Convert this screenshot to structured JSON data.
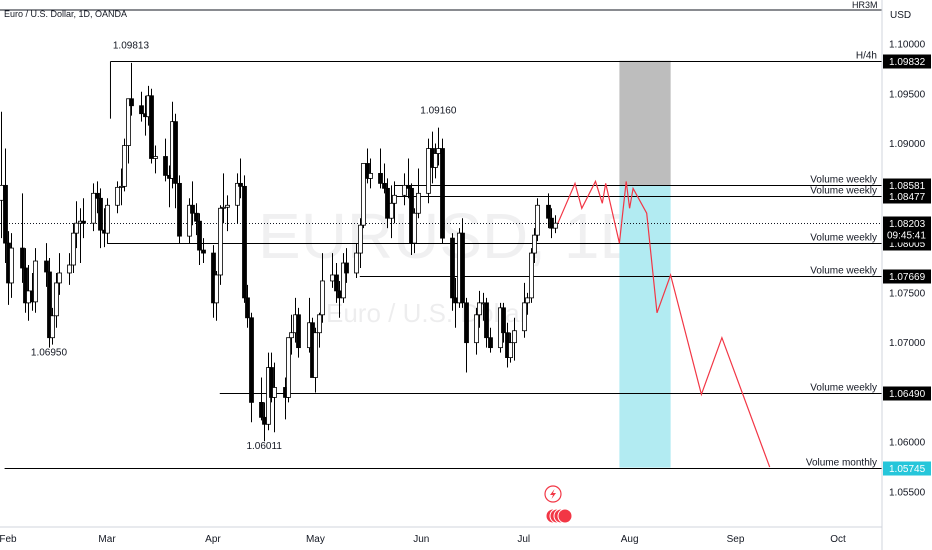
{
  "header": {
    "symbol_title": "Euro / U.S. Dollar, 1D, OANDA",
    "currency": "USD",
    "corner_tag": "HR3M"
  },
  "watermark": {
    "ticker": "EURUSD, 1D",
    "name": "Euro / U.S. Dollar"
  },
  "colors": {
    "up": "#ffffff",
    "down": "#000000",
    "projection": "#f23645",
    "stop_zone": "#bdbdbd",
    "target_zone": "#b2ebf2",
    "line": "#000000"
  },
  "chart_data": {
    "type": "candlestick",
    "x_ticks": [
      "Feb",
      "Mar",
      "Apr",
      "May",
      "Jun",
      "Jul",
      "Aug",
      "Sep",
      "Oct"
    ],
    "y_ticks": [
      "1.10000",
      "1.09500",
      "1.09000",
      "1.07500",
      "1.07000",
      "1.06000",
      "1.05500"
    ],
    "y_range": [
      1.0526,
      1.1017
    ],
    "current_price": "1.08203",
    "countdown": "09:45:41",
    "annotations": [
      {
        "label": "1.09813",
        "price": 1.09813
      },
      {
        "label": "1.09160",
        "price": 1.0916
      },
      {
        "label": "1.06950",
        "price": 1.0695
      },
      {
        "label": "1.06011",
        "price": 1.06011
      }
    ],
    "levels": [
      {
        "label": "H/4h",
        "value": "1.09832",
        "price": 1.09832
      },
      {
        "label": "Volume weekly",
        "value": "1.08581",
        "price": 1.08581
      },
      {
        "label": "Volume weekly",
        "value": "1.08477",
        "price": 1.08477
      },
      {
        "label": "Volume weekly",
        "value": "1.08005",
        "price": 1.08005
      },
      {
        "label": "Volume weekly",
        "value": "1.07669",
        "price": 1.07669
      },
      {
        "label": "Volume weekly",
        "value": "1.06490",
        "price": 1.0649
      },
      {
        "label": "Volume monthly",
        "value": "1.05745",
        "price": 1.05745
      }
    ],
    "candles": [
      {
        "date": "Jan 30",
        "o": 1.0843,
        "h": 1.0932,
        "l": 1.0805,
        "c": 1.0858
      },
      {
        "date": "Jan 31",
        "o": 1.0858,
        "h": 1.0895,
        "l": 1.078,
        "c": 1.08
      },
      {
        "date": "Feb 1",
        "o": 1.08,
        "h": 1.0812,
        "l": 1.0738,
        "c": 1.076
      },
      {
        "date": "Feb 2",
        "o": 1.076,
        "h": 1.081,
        "l": 1.0745,
        "c": 1.0795
      },
      {
        "date": "Feb 5",
        "o": 1.0795,
        "h": 1.085,
        "l": 1.076,
        "c": 1.0775
      },
      {
        "date": "Feb 6",
        "o": 1.0775,
        "h": 1.0795,
        "l": 1.073,
        "c": 1.074
      },
      {
        "date": "Feb 7",
        "o": 1.074,
        "h": 1.0778,
        "l": 1.0722,
        "c": 1.0752
      },
      {
        "date": "Feb 8",
        "o": 1.0752,
        "h": 1.077,
        "l": 1.0732,
        "c": 1.0741
      },
      {
        "date": "Feb 9",
        "o": 1.0741,
        "h": 1.0795,
        "l": 1.073,
        "c": 1.0782
      },
      {
        "date": "Feb 12",
        "o": 1.0782,
        "h": 1.08,
        "l": 1.0756,
        "c": 1.0771
      },
      {
        "date": "Feb 13",
        "o": 1.0771,
        "h": 1.0785,
        "l": 1.0695,
        "c": 1.0705
      },
      {
        "date": "Feb 14",
        "o": 1.0705,
        "h": 1.0735,
        "l": 1.0698,
        "c": 1.0727
      },
      {
        "date": "Feb 15",
        "o": 1.0727,
        "h": 1.077,
        "l": 1.0715,
        "c": 1.076
      },
      {
        "date": "Feb 16",
        "o": 1.076,
        "h": 1.079,
        "l": 1.0748,
        "c": 1.077
      },
      {
        "date": "Feb 19",
        "o": 1.077,
        "h": 1.079,
        "l": 1.0758,
        "c": 1.0778
      },
      {
        "date": "Feb 20",
        "o": 1.0778,
        "h": 1.082,
        "l": 1.077,
        "c": 1.081
      },
      {
        "date": "Feb 21",
        "o": 1.081,
        "h": 1.0842,
        "l": 1.0795,
        "c": 1.082
      },
      {
        "date": "Feb 22",
        "o": 1.082,
        "h": 1.0835,
        "l": 1.078,
        "c": 1.0822
      },
      {
        "date": "Feb 23",
        "o": 1.0822,
        "h": 1.0845,
        "l": 1.0805,
        "c": 1.082
      },
      {
        "date": "Feb 26",
        "o": 1.082,
        "h": 1.086,
        "l": 1.0812,
        "c": 1.085
      },
      {
        "date": "Feb 27",
        "o": 1.085,
        "h": 1.0862,
        "l": 1.083,
        "c": 1.0845
      },
      {
        "date": "Feb 28",
        "o": 1.0845,
        "h": 1.0855,
        "l": 1.0795,
        "c": 1.0813
      },
      {
        "date": "Feb 29",
        "o": 1.0813,
        "h": 1.0835,
        "l": 1.0796,
        "c": 1.081
      },
      {
        "date": "Mar 1",
        "o": 1.081,
        "h": 1.0845,
        "l": 1.08,
        "c": 1.0838
      },
      {
        "date": "Mar 4",
        "o": 1.0838,
        "h": 1.0862,
        "l": 1.083,
        "c": 1.0856
      },
      {
        "date": "Mar 5",
        "o": 1.0856,
        "h": 1.0875,
        "l": 1.0838,
        "c": 1.0857
      },
      {
        "date": "Mar 6",
        "o": 1.0857,
        "h": 1.0905,
        "l": 1.0852,
        "c": 1.0898
      },
      {
        "date": "Mar 7",
        "o": 1.0898,
        "h": 1.0945,
        "l": 1.088,
        "c": 1.0945
      },
      {
        "date": "Mar 8",
        "o": 1.0945,
        "h": 1.0981,
        "l": 1.0928,
        "c": 1.0938
      },
      {
        "date": "Mar 11",
        "o": 1.0938,
        "h": 1.0952,
        "l": 1.0922,
        "c": 1.093
      },
      {
        "date": "Mar 12",
        "o": 1.093,
        "h": 1.0948,
        "l": 1.0908,
        "c": 1.0927
      },
      {
        "date": "Mar 13",
        "o": 1.0927,
        "h": 1.0958,
        "l": 1.0918,
        "c": 1.0948
      },
      {
        "date": "Mar 14",
        "o": 1.0948,
        "h": 1.0955,
        "l": 1.088,
        "c": 1.0885
      },
      {
        "date": "Mar 15",
        "o": 1.0885,
        "h": 1.0898,
        "l": 1.087,
        "c": 1.0887
      },
      {
        "date": "Mar 18",
        "o": 1.0887,
        "h": 1.0905,
        "l": 1.0862,
        "c": 1.0868
      },
      {
        "date": "Mar 19",
        "o": 1.0868,
        "h": 1.0878,
        "l": 1.0836,
        "c": 1.0865
      },
      {
        "date": "Mar 20",
        "o": 1.0865,
        "h": 1.0942,
        "l": 1.0855,
        "c": 1.0922
      },
      {
        "date": "Mar 21",
        "o": 1.0922,
        "h": 1.093,
        "l": 1.0835,
        "c": 1.086
      },
      {
        "date": "Mar 22",
        "o": 1.086,
        "h": 1.0868,
        "l": 1.08,
        "c": 1.0807
      },
      {
        "date": "Mar 25",
        "o": 1.0807,
        "h": 1.0845,
        "l": 1.08,
        "c": 1.0838
      },
      {
        "date": "Mar 26",
        "o": 1.0838,
        "h": 1.0862,
        "l": 1.0818,
        "c": 1.083
      },
      {
        "date": "Mar 27",
        "o": 1.083,
        "h": 1.084,
        "l": 1.0808,
        "c": 1.0822
      },
      {
        "date": "Mar 28",
        "o": 1.0822,
        "h": 1.083,
        "l": 1.0778,
        "c": 1.0793
      },
      {
        "date": "Mar 29",
        "o": 1.0793,
        "h": 1.0805,
        "l": 1.078,
        "c": 1.079
      },
      {
        "date": "Apr 1",
        "o": 1.079,
        "h": 1.0798,
        "l": 1.0725,
        "c": 1.074
      },
      {
        "date": "Apr 2",
        "o": 1.074,
        "h": 1.0772,
        "l": 1.0722,
        "c": 1.0768
      },
      {
        "date": "Apr 3",
        "o": 1.0768,
        "h": 1.0838,
        "l": 1.0758,
        "c": 1.0835
      },
      {
        "date": "Apr 4",
        "o": 1.0835,
        "h": 1.087,
        "l": 1.082,
        "c": 1.0836
      },
      {
        "date": "Apr 5",
        "o": 1.0836,
        "h": 1.0848,
        "l": 1.0812,
        "c": 1.0838
      },
      {
        "date": "Apr 8",
        "o": 1.0838,
        "h": 1.087,
        "l": 1.082,
        "c": 1.086
      },
      {
        "date": "Apr 9",
        "o": 1.086,
        "h": 1.0885,
        "l": 1.0845,
        "c": 1.0857
      },
      {
        "date": "Apr 10",
        "o": 1.0857,
        "h": 1.0868,
        "l": 1.074,
        "c": 1.0745
      },
      {
        "date": "Apr 11",
        "o": 1.0745,
        "h": 1.0758,
        "l": 1.0715,
        "c": 1.0725
      },
      {
        "date": "Apr 12",
        "o": 1.0725,
        "h": 1.073,
        "l": 1.062,
        "c": 1.064
      },
      {
        "date": "Apr 15",
        "o": 1.064,
        "h": 1.0665,
        "l": 1.0622,
        "c": 1.0625
      },
      {
        "date": "Apr 16",
        "o": 1.0625,
        "h": 1.064,
        "l": 1.0601,
        "c": 1.0618
      },
      {
        "date": "Apr 17",
        "o": 1.0618,
        "h": 1.069,
        "l": 1.0612,
        "c": 1.0675
      },
      {
        "date": "Apr 18",
        "o": 1.0675,
        "h": 1.069,
        "l": 1.064,
        "c": 1.0645
      },
      {
        "date": "Apr 19",
        "o": 1.0645,
        "h": 1.068,
        "l": 1.061,
        "c": 1.0655
      },
      {
        "date": "Apr 22",
        "o": 1.0655,
        "h": 1.0665,
        "l": 1.0623,
        "c": 1.0645
      },
      {
        "date": "Apr 23",
        "o": 1.0645,
        "h": 1.0705,
        "l": 1.064,
        "c": 1.0705
      },
      {
        "date": "Apr 24",
        "o": 1.0705,
        "h": 1.0728,
        "l": 1.0688,
        "c": 1.071
      },
      {
        "date": "Apr 25",
        "o": 1.071,
        "h": 1.0745,
        "l": 1.07,
        "c": 1.0728
      },
      {
        "date": "Apr 26",
        "o": 1.0728,
        "h": 1.0735,
        "l": 1.0685,
        "c": 1.0695
      },
      {
        "date": "Apr 29",
        "o": 1.0695,
        "h": 1.0745,
        "l": 1.069,
        "c": 1.072
      },
      {
        "date": "Apr 30",
        "o": 1.072,
        "h": 1.0725,
        "l": 1.0665,
        "c": 1.0665
      },
      {
        "date": "May 1",
        "o": 1.0665,
        "h": 1.0715,
        "l": 1.065,
        "c": 1.071
      },
      {
        "date": "May 2",
        "o": 1.071,
        "h": 1.073,
        "l": 1.0695,
        "c": 1.0728
      },
      {
        "date": "May 3",
        "o": 1.0728,
        "h": 1.079,
        "l": 1.072,
        "c": 1.0762
      },
      {
        "date": "May 6",
        "o": 1.0762,
        "h": 1.079,
        "l": 1.0755,
        "c": 1.0768
      },
      {
        "date": "May 7",
        "o": 1.0768,
        "h": 1.078,
        "l": 1.074,
        "c": 1.0752
      },
      {
        "date": "May 8",
        "o": 1.0752,
        "h": 1.0762,
        "l": 1.0725,
        "c": 1.0745
      },
      {
        "date": "May 9",
        "o": 1.0745,
        "h": 1.079,
        "l": 1.074,
        "c": 1.078
      },
      {
        "date": "May 10",
        "o": 1.078,
        "h": 1.0795,
        "l": 1.076,
        "c": 1.077
      },
      {
        "date": "May 13",
        "o": 1.077,
        "h": 1.08,
        "l": 1.0765,
        "c": 1.079
      },
      {
        "date": "May 14",
        "o": 1.079,
        "h": 1.0825,
        "l": 1.0775,
        "c": 1.0818
      },
      {
        "date": "May 15",
        "o": 1.0818,
        "h": 1.088,
        "l": 1.0815,
        "c": 1.088
      },
      {
        "date": "May 16",
        "o": 1.088,
        "h": 1.0895,
        "l": 1.086,
        "c": 1.0865
      },
      {
        "date": "May 17",
        "o": 1.0865,
        "h": 1.0885,
        "l": 1.0855,
        "c": 1.087
      },
      {
        "date": "May 20",
        "o": 1.087,
        "h": 1.0895,
        "l": 1.0855,
        "c": 1.086
      },
      {
        "date": "May 21",
        "o": 1.086,
        "h": 1.088,
        "l": 1.085,
        "c": 1.0855
      },
      {
        "date": "May 22",
        "o": 1.0855,
        "h": 1.0865,
        "l": 1.0815,
        "c": 1.0825
      },
      {
        "date": "May 23",
        "o": 1.0825,
        "h": 1.0858,
        "l": 1.0805,
        "c": 1.084
      },
      {
        "date": "May 24",
        "o": 1.084,
        "h": 1.0862,
        "l": 1.082,
        "c": 1.0848
      },
      {
        "date": "May 27",
        "o": 1.0848,
        "h": 1.087,
        "l": 1.0838,
        "c": 1.0858
      },
      {
        "date": "May 28",
        "o": 1.0858,
        "h": 1.0885,
        "l": 1.0845,
        "c": 1.0855
      },
      {
        "date": "May 29",
        "o": 1.0855,
        "h": 1.086,
        "l": 1.0788,
        "c": 1.08
      },
      {
        "date": "May 30",
        "o": 1.08,
        "h": 1.0835,
        "l": 1.079,
        "c": 1.083
      },
      {
        "date": "May 31",
        "o": 1.083,
        "h": 1.0875,
        "l": 1.0825,
        "c": 1.085
      },
      {
        "date": "Jun 3",
        "o": 1.085,
        "h": 1.0905,
        "l": 1.084,
        "c": 1.0895
      },
      {
        "date": "Jun 4",
        "o": 1.0895,
        "h": 1.0912,
        "l": 1.086,
        "c": 1.0876
      },
      {
        "date": "Jun 5",
        "o": 1.0876,
        "h": 1.09,
        "l": 1.0865,
        "c": 1.089
      },
      {
        "date": "Jun 6",
        "o": 1.089,
        "h": 1.0916,
        "l": 1.0878,
        "c": 1.0895
      },
      {
        "date": "Jun 7",
        "o": 1.0895,
        "h": 1.0905,
        "l": 1.08,
        "c": 1.0805
      },
      {
        "date": "Jun 10",
        "o": 1.0805,
        "h": 1.081,
        "l": 1.0732,
        "c": 1.0745
      },
      {
        "date": "Jun 11",
        "o": 1.0745,
        "h": 1.0765,
        "l": 1.0715,
        "c": 1.074
      },
      {
        "date": "Jun 12",
        "o": 1.074,
        "h": 1.0815,
        "l": 1.0735,
        "c": 1.081
      },
      {
        "date": "Jun 13",
        "o": 1.081,
        "h": 1.0825,
        "l": 1.0735,
        "c": 1.074
      },
      {
        "date": "Jun 14",
        "o": 1.074,
        "h": 1.0745,
        "l": 1.067,
        "c": 1.07
      },
      {
        "date": "Jun 17",
        "o": 1.07,
        "h": 1.0735,
        "l": 1.0688,
        "c": 1.0728
      },
      {
        "date": "Jun 18",
        "o": 1.0728,
        "h": 1.0752,
        "l": 1.0715,
        "c": 1.074
      },
      {
        "date": "Jun 19",
        "o": 1.074,
        "h": 1.075,
        "l": 1.0722,
        "c": 1.074
      },
      {
        "date": "Jun 20",
        "o": 1.074,
        "h": 1.0745,
        "l": 1.0695,
        "c": 1.0705
      },
      {
        "date": "Jun 21",
        "o": 1.0705,
        "h": 1.0715,
        "l": 1.069,
        "c": 1.0695
      },
      {
        "date": "Jun 24",
        "o": 1.0695,
        "h": 1.074,
        "l": 1.069,
        "c": 1.0735
      },
      {
        "date": "Jun 25",
        "o": 1.0735,
        "h": 1.074,
        "l": 1.07,
        "c": 1.071
      },
      {
        "date": "Jun 26",
        "o": 1.071,
        "h": 1.072,
        "l": 1.0675,
        "c": 1.0685
      },
      {
        "date": "Jun 27",
        "o": 1.0685,
        "h": 1.071,
        "l": 1.068,
        "c": 1.07
      },
      {
        "date": "Jun 28",
        "o": 1.07,
        "h": 1.0725,
        "l": 1.0682,
        "c": 1.0712
      },
      {
        "date": "Jul 1",
        "o": 1.0712,
        "h": 1.076,
        "l": 1.0705,
        "c": 1.074
      },
      {
        "date": "Jul 2",
        "o": 1.074,
        "h": 1.075,
        "l": 1.0728,
        "c": 1.0745
      },
      {
        "date": "Jul 3",
        "o": 1.0745,
        "h": 1.0795,
        "l": 1.074,
        "c": 1.079
      },
      {
        "date": "Jul 4",
        "o": 1.079,
        "h": 1.0815,
        "l": 1.078,
        "c": 1.0808
      },
      {
        "date": "Jul 5",
        "o": 1.0808,
        "h": 1.0845,
        "l": 1.0802,
        "c": 1.0838
      },
      {
        "date": "Jul 8",
        "o": 1.0838,
        "h": 1.085,
        "l": 1.0815,
        "c": 1.0825
      },
      {
        "date": "Jul 9",
        "o": 1.0825,
        "h": 1.0835,
        "l": 1.0805,
        "c": 1.0815
      },
      {
        "date": "Jul 10",
        "o": 1.0815,
        "h": 1.0828,
        "l": 1.081,
        "c": 1.082
      }
    ],
    "projection": {
      "color": "#f23645",
      "points": [
        {
          "x": "Jul 11",
          "y": 1.082
        },
        {
          "x": "Jul 16",
          "y": 1.086
        },
        {
          "x": "Jul 18",
          "y": 1.0835
        },
        {
          "x": "Jul 22",
          "y": 1.0862
        },
        {
          "x": "Jul 24",
          "y": 1.084
        },
        {
          "x": "Jul 25",
          "y": 1.086
        },
        {
          "x": "Jul 29",
          "y": 1.08
        },
        {
          "x": "Jul 31",
          "y": 1.0862
        },
        {
          "x": "Aug 1",
          "y": 1.0835
        },
        {
          "x": "Aug 2",
          "y": 1.0855
        },
        {
          "x": "Aug 6",
          "y": 1.083
        },
        {
          "x": "Aug 9",
          "y": 1.073
        },
        {
          "x": "Aug 13",
          "y": 1.0768
        },
        {
          "x": "Aug 22",
          "y": 1.0648
        },
        {
          "x": "Aug 28",
          "y": 1.0705
        },
        {
          "x": "Sep 11",
          "y": 1.0575
        }
      ]
    },
    "position_zones": [
      {
        "kind": "stop",
        "from": "Jul 29",
        "to": "Aug 13",
        "top": 1.09832,
        "bottom": 1.08581
      },
      {
        "kind": "target",
        "from": "Jul 29",
        "to": "Aug 13",
        "top": 1.08581,
        "bottom": 1.05745
      }
    ]
  }
}
